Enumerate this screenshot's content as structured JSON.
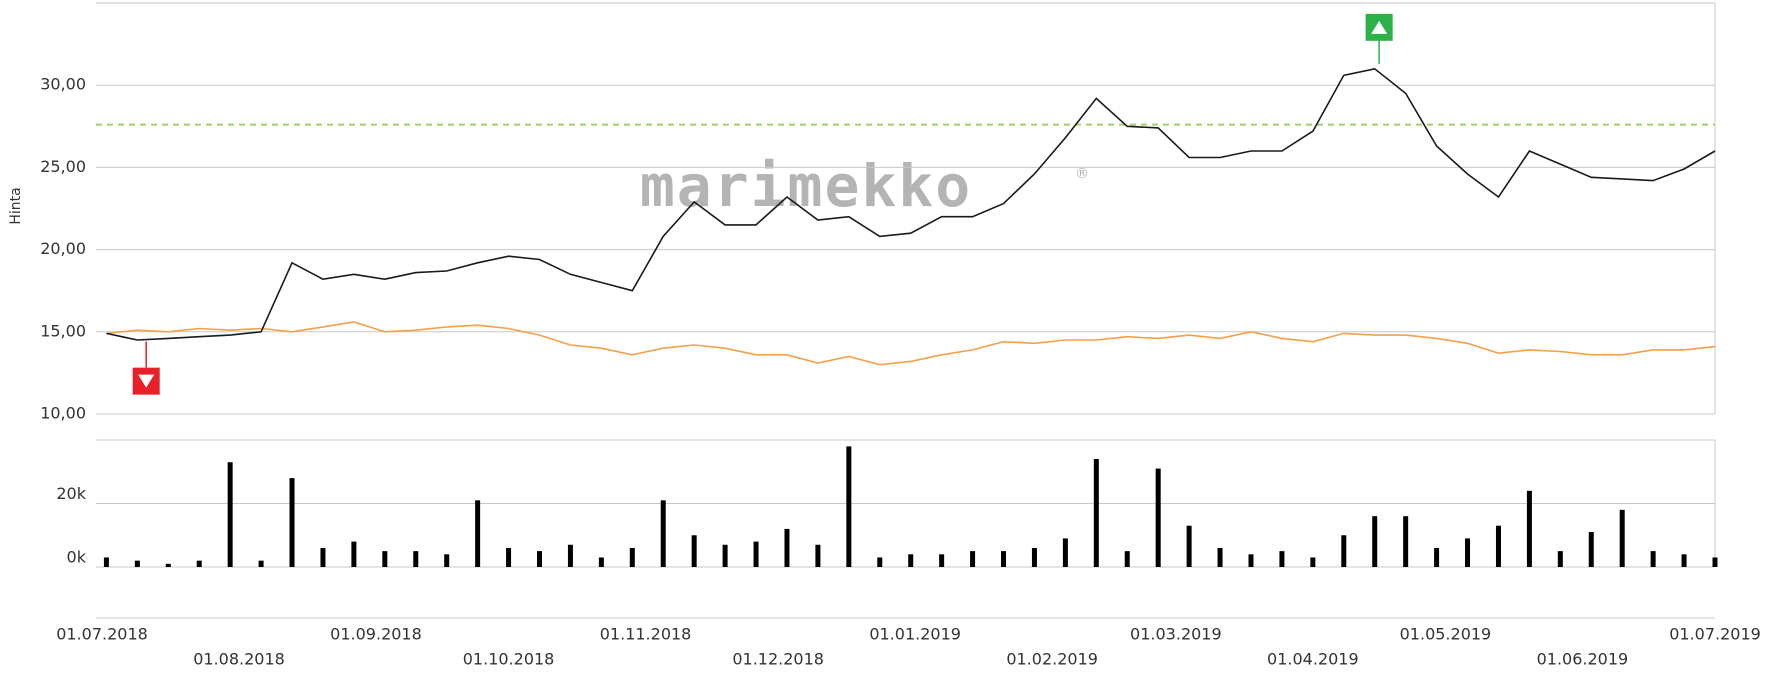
{
  "chart_data": [
    {
      "type": "line",
      "y_label": "Hinta",
      "watermark": "marimekko",
      "watermark_mark": "®",
      "x": [
        "02.07.2018",
        "09.07.2018",
        "16.07.2018",
        "23.07.2018",
        "30.07.2018",
        "06.08.2018",
        "13.08.2018",
        "20.08.2018",
        "27.08.2018",
        "03.09.2018",
        "10.09.2018",
        "17.09.2018",
        "24.09.2018",
        "01.10.2018",
        "08.10.2018",
        "15.10.2018",
        "22.10.2018",
        "29.10.2018",
        "05.11.2018",
        "12.11.2018",
        "19.11.2018",
        "26.11.2018",
        "03.12.2018",
        "10.12.2018",
        "17.12.2018",
        "24.12.2018",
        "31.12.2018",
        "07.01.2019",
        "14.01.2019",
        "21.01.2019",
        "28.01.2019",
        "04.02.2019",
        "11.02.2019",
        "18.02.2019",
        "25.02.2019",
        "04.03.2019",
        "11.03.2019",
        "18.03.2019",
        "25.03.2019",
        "01.04.2019",
        "08.04.2019",
        "15.04.2019",
        "22.04.2019",
        "29.04.2019",
        "06.05.2019",
        "13.05.2019",
        "20.05.2019",
        "27.05.2019",
        "03.06.2019",
        "10.06.2019",
        "17.06.2019",
        "24.06.2019",
        "01.07.2019"
      ],
      "series": [
        {
          "color": "#1a1a1a",
          "values": [
            14.9,
            14.5,
            14.6,
            14.7,
            14.8,
            15.0,
            19.2,
            18.2,
            18.5,
            18.2,
            18.6,
            18.7,
            19.2,
            19.6,
            19.4,
            18.5,
            18.0,
            17.5,
            20.8,
            22.9,
            21.5,
            21.5,
            23.2,
            21.8,
            22.0,
            20.8,
            21.0,
            22.0,
            22.0,
            22.8,
            24.6,
            26.8,
            29.2,
            27.5,
            27.4,
            25.6,
            25.6,
            26.0,
            26.0,
            27.2,
            30.6,
            31.0,
            29.5,
            26.3,
            24.6,
            23.2,
            26.0,
            25.2,
            24.4,
            24.3,
            24.2,
            24.9,
            26.0
          ]
        },
        {
          "color": "#f5a04a",
          "values": [
            14.9,
            15.1,
            15.0,
            15.2,
            15.1,
            15.2,
            15.0,
            15.3,
            15.6,
            15.0,
            15.1,
            15.3,
            15.4,
            15.2,
            14.8,
            14.2,
            14.0,
            13.6,
            14.0,
            14.2,
            14.0,
            13.6,
            13.6,
            13.1,
            13.5,
            13.0,
            13.2,
            13.6,
            13.9,
            14.4,
            14.3,
            14.5,
            14.5,
            14.7,
            14.6,
            14.8,
            14.6,
            15.0,
            14.6,
            14.4,
            14.9,
            14.8,
            14.8,
            14.6,
            14.3,
            13.7,
            13.9,
            13.8,
            13.6,
            13.6,
            13.9,
            13.9,
            14.1
          ]
        }
      ],
      "xlim": [
        "01.07.2018",
        "01.07.2019"
      ],
      "ylim": [
        10,
        35
      ],
      "yticks": [
        {
          "value": 10,
          "label": "10,00"
        },
        {
          "value": 15,
          "label": "15,00"
        },
        {
          "value": 20,
          "label": "20,00"
        },
        {
          "value": 25,
          "label": "25,00"
        },
        {
          "value": 30,
          "label": "30,00"
        }
      ],
      "grid": true,
      "reference_line": {
        "value": 27.6,
        "color": "#9ed36a",
        "style": "dashed"
      },
      "markers": [
        {
          "direction": "down",
          "x": "11.07.2018",
          "value": 14.4,
          "color": "#e8202a"
        },
        {
          "direction": "up",
          "x": "16.04.2019",
          "value": 31.3,
          "color": "#2db24a"
        }
      ]
    },
    {
      "type": "bar",
      "color": "#000000",
      "x": [
        "02.07.2018",
        "09.07.2018",
        "16.07.2018",
        "23.07.2018",
        "30.07.2018",
        "06.08.2018",
        "13.08.2018",
        "20.08.2018",
        "27.08.2018",
        "03.09.2018",
        "10.09.2018",
        "17.09.2018",
        "24.09.2018",
        "01.10.2018",
        "08.10.2018",
        "15.10.2018",
        "22.10.2018",
        "29.10.2018",
        "05.11.2018",
        "12.11.2018",
        "19.11.2018",
        "26.11.2018",
        "03.12.2018",
        "10.12.2018",
        "17.12.2018",
        "24.12.2018",
        "31.12.2018",
        "07.01.2019",
        "14.01.2019",
        "21.01.2019",
        "28.01.2019",
        "04.02.2019",
        "11.02.2019",
        "18.02.2019",
        "25.02.2019",
        "04.03.2019",
        "11.03.2019",
        "18.03.2019",
        "25.03.2019",
        "01.04.2019",
        "08.04.2019",
        "15.04.2019",
        "22.04.2019",
        "29.04.2019",
        "06.05.2019",
        "13.05.2019",
        "20.05.2019",
        "27.05.2019",
        "03.06.2019",
        "10.06.2019",
        "17.06.2019",
        "24.06.2019",
        "01.07.2019"
      ],
      "values": [
        3000,
        2000,
        1000,
        2000,
        33000,
        2000,
        28000,
        6000,
        8000,
        5000,
        5000,
        4000,
        21000,
        6000,
        5000,
        7000,
        3000,
        6000,
        21000,
        10000,
        7000,
        8000,
        12000,
        7000,
        38000,
        3000,
        4000,
        4000,
        5000,
        5000,
        6000,
        9000,
        34000,
        5000,
        31000,
        13000,
        6000,
        4000,
        5000,
        3000,
        10000,
        16000,
        16000,
        6000,
        9000,
        13000,
        24000,
        5000,
        11000,
        18000,
        5000,
        4000,
        3000
      ],
      "xlim": [
        "01.07.2018",
        "01.07.2019"
      ],
      "ylim": [
        0,
        40000
      ],
      "yticks": [
        {
          "value": 0,
          "label": "0k"
        },
        {
          "value": 20000,
          "label": "20k"
        }
      ],
      "grid": true,
      "xticks": [
        "01.07.2018",
        "01.08.2018",
        "01.09.2018",
        "01.10.2018",
        "01.11.2018",
        "01.12.2018",
        "01.01.2019",
        "01.02.2019",
        "01.03.2019",
        "01.04.2019",
        "01.05.2019",
        "01.06.2019",
        "01.07.2019"
      ]
    }
  ]
}
